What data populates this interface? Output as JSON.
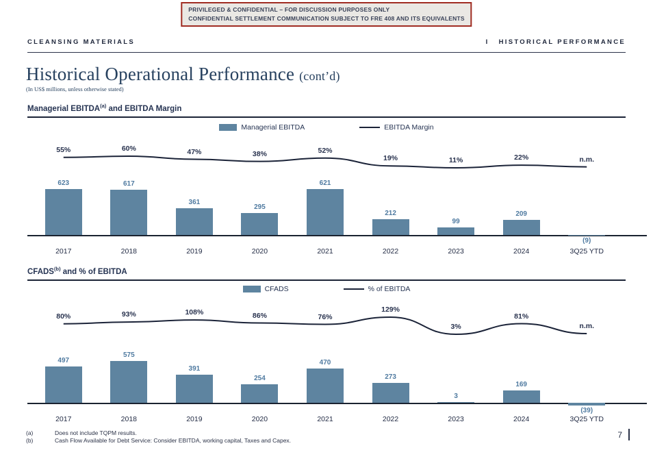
{
  "banner": {
    "line1": "PRIVILEGED & CONFIDENTIAL – FOR DISCUSSION PURPOSES ONLY",
    "line2": "CONFIDENTIAL SETTLEMENT COMMUNICATION SUBJECT TO FRE 408 AND ITS EQUIVALENTS"
  },
  "header": {
    "left": "CLEANSING MATERIALS",
    "separator": "I",
    "right": "HISTORICAL PERFORMANCE"
  },
  "title": {
    "main": "Historical Operational Performance",
    "suffix": "(cont’d)",
    "subtitle": "(In US$ millions, unless otherwise stated)"
  },
  "footnotes": [
    {
      "marker": "(a)",
      "text": "Does not include TQPM results."
    },
    {
      "marker": "(b)",
      "text": "Cash Flow Available for Debt Service: Consider EBITDA, working capital, Taxes and Capex."
    }
  ],
  "page_number": "7",
  "colors": {
    "bar_fill": "#5e84a0",
    "value_label": "#4f7aa0",
    "trend_line": "#1b2338",
    "banner_border": "#a02c22",
    "heading_text": "#27415f"
  },
  "chart_data": [
    {
      "type": "bar",
      "title": "Managerial EBITDA(a) and EBITDA Margin",
      "title_parts": {
        "pre": "Managerial EBITDA",
        "sup": "(a)",
        "post": " and EBITDA Margin"
      },
      "legend": [
        {
          "swatch": "bar",
          "label": "Managerial EBITDA"
        },
        {
          "swatch": "line",
          "label": "EBITDA Margin"
        }
      ],
      "categories": [
        "2017",
        "2018",
        "2019",
        "2020",
        "2021",
        "2022",
        "2023",
        "2024",
        "3Q25 YTD"
      ],
      "series": [
        {
          "name": "Managerial EBITDA",
          "type": "bar",
          "values": [
            623,
            617,
            361,
            295,
            621,
            212,
            99,
            209,
            -9
          ],
          "labels": [
            "623",
            "617",
            "361",
            "295",
            "621",
            "212",
            "99",
            "209",
            "(9)"
          ]
        },
        {
          "name": "EBITDA Margin",
          "type": "line",
          "values": [
            55,
            60,
            47,
            38,
            52,
            19,
            11,
            22,
            null
          ],
          "labels": [
            "55%",
            "60%",
            "47%",
            "38%",
            "52%",
            "19%",
            "11%",
            "22%",
            "n.m."
          ],
          "plot_values": [
            55,
            60,
            47,
            38,
            52,
            19,
            11,
            22,
            15
          ]
        }
      ]
    },
    {
      "type": "bar",
      "title": "CFADS(b) and % of EBITDA",
      "title_parts": {
        "pre": "CFADS",
        "sup": "(b)",
        "post": " and % of EBITDA"
      },
      "legend": [
        {
          "swatch": "bar",
          "label": "CFADS"
        },
        {
          "swatch": "line",
          "label": "% of EBITDA"
        }
      ],
      "categories": [
        "2017",
        "2018",
        "2019",
        "2020",
        "2021",
        "2022",
        "2023",
        "2024",
        "3Q25 YTD"
      ],
      "series": [
        {
          "name": "CFADS",
          "type": "bar",
          "values": [
            497,
            575,
            391,
            254,
            470,
            273,
            3,
            169,
            -39
          ],
          "labels": [
            "497",
            "575",
            "391",
            "254",
            "470",
            "273",
            "3",
            "169",
            "(39)"
          ]
        },
        {
          "name": "% of EBITDA",
          "type": "line",
          "values": [
            80,
            93,
            108,
            86,
            76,
            129,
            3,
            81,
            null
          ],
          "labels": [
            "80%",
            "93%",
            "108%",
            "86%",
            "76%",
            "129%",
            "3%",
            "81%",
            "n.m."
          ],
          "plot_values": [
            80,
            93,
            108,
            86,
            76,
            129,
            3,
            81,
            8
          ]
        }
      ]
    }
  ]
}
